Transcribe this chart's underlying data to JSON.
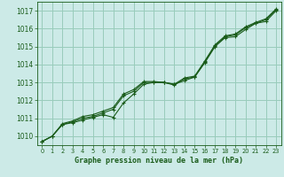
{
  "title": "Graphe pression niveau de la mer (hPa)",
  "background_color": "#cceae7",
  "grid_color": "#99ccbb",
  "line_color": "#1a5c1a",
  "marker_color": "#1a5c1a",
  "xlim": [
    -0.5,
    23.5
  ],
  "ylim": [
    1009.5,
    1017.5
  ],
  "xticks": [
    0,
    1,
    2,
    3,
    4,
    5,
    6,
    7,
    8,
    9,
    10,
    11,
    12,
    13,
    14,
    15,
    16,
    17,
    18,
    19,
    20,
    21,
    22,
    23
  ],
  "yticks": [
    1010,
    1011,
    1012,
    1013,
    1014,
    1015,
    1016,
    1017
  ],
  "series1": [
    1009.7,
    1010.0,
    1010.65,
    1010.75,
    1010.9,
    1011.05,
    1011.2,
    1011.05,
    1011.85,
    1012.35,
    1012.9,
    1013.0,
    1013.0,
    1012.9,
    1013.1,
    1013.3,
    1014.1,
    1015.0,
    1015.5,
    1015.55,
    1015.95,
    1016.3,
    1016.4,
    1017.0
  ],
  "series2": [
    1009.7,
    1010.0,
    1010.65,
    1010.8,
    1011.0,
    1011.1,
    1011.3,
    1011.5,
    1012.25,
    1012.5,
    1013.0,
    1013.0,
    1013.0,
    1012.85,
    1013.2,
    1013.3,
    1014.15,
    1015.05,
    1015.55,
    1015.65,
    1016.05,
    1016.3,
    1016.5,
    1017.05
  ],
  "series3": [
    1009.7,
    1010.0,
    1010.7,
    1010.85,
    1011.1,
    1011.2,
    1011.4,
    1011.6,
    1012.35,
    1012.6,
    1013.05,
    1013.05,
    1013.0,
    1012.9,
    1013.25,
    1013.35,
    1014.2,
    1015.1,
    1015.6,
    1015.7,
    1016.1,
    1016.35,
    1016.55,
    1017.1
  ]
}
